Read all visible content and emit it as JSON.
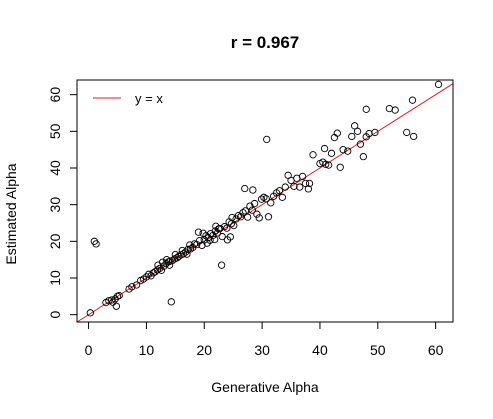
{
  "chart_data": {
    "type": "scatter",
    "title": "r = 0.967",
    "xlabel": "Generative Alpha",
    "ylabel": "Estimated Alpha",
    "xlim": [
      -2,
      63
    ],
    "ylim": [
      -2,
      64
    ],
    "xticks": [
      0,
      10,
      20,
      30,
      40,
      50,
      60
    ],
    "yticks": [
      0,
      10,
      20,
      30,
      40,
      50,
      60
    ],
    "grid": false,
    "legend": {
      "position": "top-left",
      "label": "y = x",
      "color": "#e41a1c"
    },
    "reference_line": {
      "slope": 1,
      "intercept": 0,
      "color": "#e41a1c"
    },
    "point_color": "#000000",
    "points": [
      [
        0.3,
        0.5
      ],
      [
        1.0,
        20.0
      ],
      [
        1.3,
        19.3
      ],
      [
        3.0,
        3.3
      ],
      [
        3.5,
        3.8
      ],
      [
        4.0,
        4.0
      ],
      [
        4.2,
        3.4
      ],
      [
        4.6,
        4.3
      ],
      [
        5.0,
        5.0
      ],
      [
        5.3,
        5.2
      ],
      [
        4.8,
        2.3
      ],
      [
        7.0,
        7.0
      ],
      [
        7.5,
        7.6
      ],
      [
        8.3,
        8.1
      ],
      [
        9.0,
        9.3
      ],
      [
        9.5,
        9.7
      ],
      [
        10.0,
        10.3
      ],
      [
        10.4,
        11.0
      ],
      [
        10.8,
        10.6
      ],
      [
        11.2,
        11.4
      ],
      [
        11.5,
        11.7
      ],
      [
        11.9,
        12.2
      ],
      [
        12.3,
        12.6
      ],
      [
        12.6,
        12.1
      ],
      [
        13.0,
        13.2
      ],
      [
        13.4,
        13.9
      ],
      [
        13.8,
        14.4
      ],
      [
        14.1,
        14.6
      ],
      [
        14.5,
        14.8
      ],
      [
        14.9,
        15.2
      ],
      [
        15.3,
        15.5
      ],
      [
        15.6,
        15.9
      ],
      [
        16.0,
        16.3
      ],
      [
        16.4,
        16.6
      ],
      [
        16.8,
        17.1
      ],
      [
        17.2,
        17.8
      ],
      [
        17.6,
        17.9
      ],
      [
        12.0,
        13.5
      ],
      [
        12.8,
        14.3
      ],
      [
        13.5,
        15.0
      ],
      [
        14.0,
        13.5
      ],
      [
        14.3,
        3.5
      ],
      [
        15.0,
        16.4
      ],
      [
        16.2,
        17.5
      ],
      [
        17.0,
        16.5
      ],
      [
        18.0,
        18.3
      ],
      [
        18.3,
        19.3
      ],
      [
        18.7,
        19.1
      ],
      [
        19.2,
        20.2
      ],
      [
        19.6,
        18.9
      ],
      [
        20.0,
        20.4
      ],
      [
        20.3,
        21.5
      ],
      [
        20.7,
        21.0
      ],
      [
        21.1,
        22.1
      ],
      [
        21.5,
        21.6
      ],
      [
        21.9,
        22.8
      ],
      [
        22.3,
        22.3
      ],
      [
        22.7,
        23.5
      ],
      [
        23.1,
        21.3
      ],
      [
        23.5,
        24.0
      ],
      [
        23.9,
        23.6
      ],
      [
        24.3,
        25.3
      ],
      [
        24.7,
        24.8
      ],
      [
        25.1,
        24.3
      ],
      [
        25.5,
        26.1
      ],
      [
        25.9,
        27.0
      ],
      [
        19.0,
        22.5
      ],
      [
        20.5,
        19.5
      ],
      [
        21.0,
        20.3
      ],
      [
        22.0,
        24.1
      ],
      [
        23.0,
        13.5
      ],
      [
        24.0,
        20.4
      ],
      [
        24.5,
        21.2
      ],
      [
        26.3,
        26.7
      ],
      [
        26.7,
        27.8
      ],
      [
        27.1,
        28.3
      ],
      [
        27.5,
        26.6
      ],
      [
        27.9,
        29.6
      ],
      [
        28.3,
        28.5
      ],
      [
        28.7,
        30.3
      ],
      [
        29.1,
        27.4
      ],
      [
        29.5,
        26.4
      ],
      [
        29.9,
        31.5
      ],
      [
        30.3,
        32.0
      ],
      [
        30.7,
        31.6
      ],
      [
        31.1,
        26.7
      ],
      [
        31.5,
        30.5
      ],
      [
        27.0,
        34.4
      ],
      [
        28.4,
        34.0
      ],
      [
        30.8,
        47.8
      ],
      [
        32.0,
        32.3
      ],
      [
        32.5,
        33.2
      ],
      [
        33.0,
        33.8
      ],
      [
        33.5,
        32.0
      ],
      [
        34.0,
        34.8
      ],
      [
        34.5,
        38.0
      ],
      [
        35.0,
        36.6
      ],
      [
        35.5,
        35.0
      ],
      [
        36.0,
        37.2
      ],
      [
        36.5,
        34.8
      ],
      [
        37.0,
        37.7
      ],
      [
        37.5,
        35.8
      ],
      [
        38.0,
        34.3
      ],
      [
        38.2,
        35.8
      ],
      [
        38.8,
        43.6
      ],
      [
        40.0,
        41.2
      ],
      [
        40.5,
        41.6
      ],
      [
        41.0,
        41.0
      ],
      [
        41.5,
        40.8
      ],
      [
        40.8,
        45.3
      ],
      [
        42.0,
        44.0
      ],
      [
        42.5,
        48.3
      ],
      [
        43.0,
        49.5
      ],
      [
        43.5,
        40.2
      ],
      [
        44.0,
        45.0
      ],
      [
        44.8,
        44.6
      ],
      [
        45.5,
        48.6
      ],
      [
        46.0,
        51.5
      ],
      [
        46.5,
        50.0
      ],
      [
        47.0,
        46.5
      ],
      [
        47.5,
        43.1
      ],
      [
        48.0,
        48.5
      ],
      [
        48.0,
        56.0
      ],
      [
        48.5,
        49.4
      ],
      [
        49.5,
        49.7
      ],
      [
        52.0,
        56.2
      ],
      [
        53.0,
        55.8
      ],
      [
        55.0,
        49.7
      ],
      [
        56.0,
        58.5
      ],
      [
        56.2,
        48.6
      ],
      [
        60.5,
        62.8
      ],
      [
        17.5,
        19.0
      ],
      [
        19.8,
        22.2
      ],
      [
        21.8,
        20.5
      ],
      [
        22.5,
        23.4
      ],
      [
        24.8,
        26.5
      ]
    ]
  }
}
